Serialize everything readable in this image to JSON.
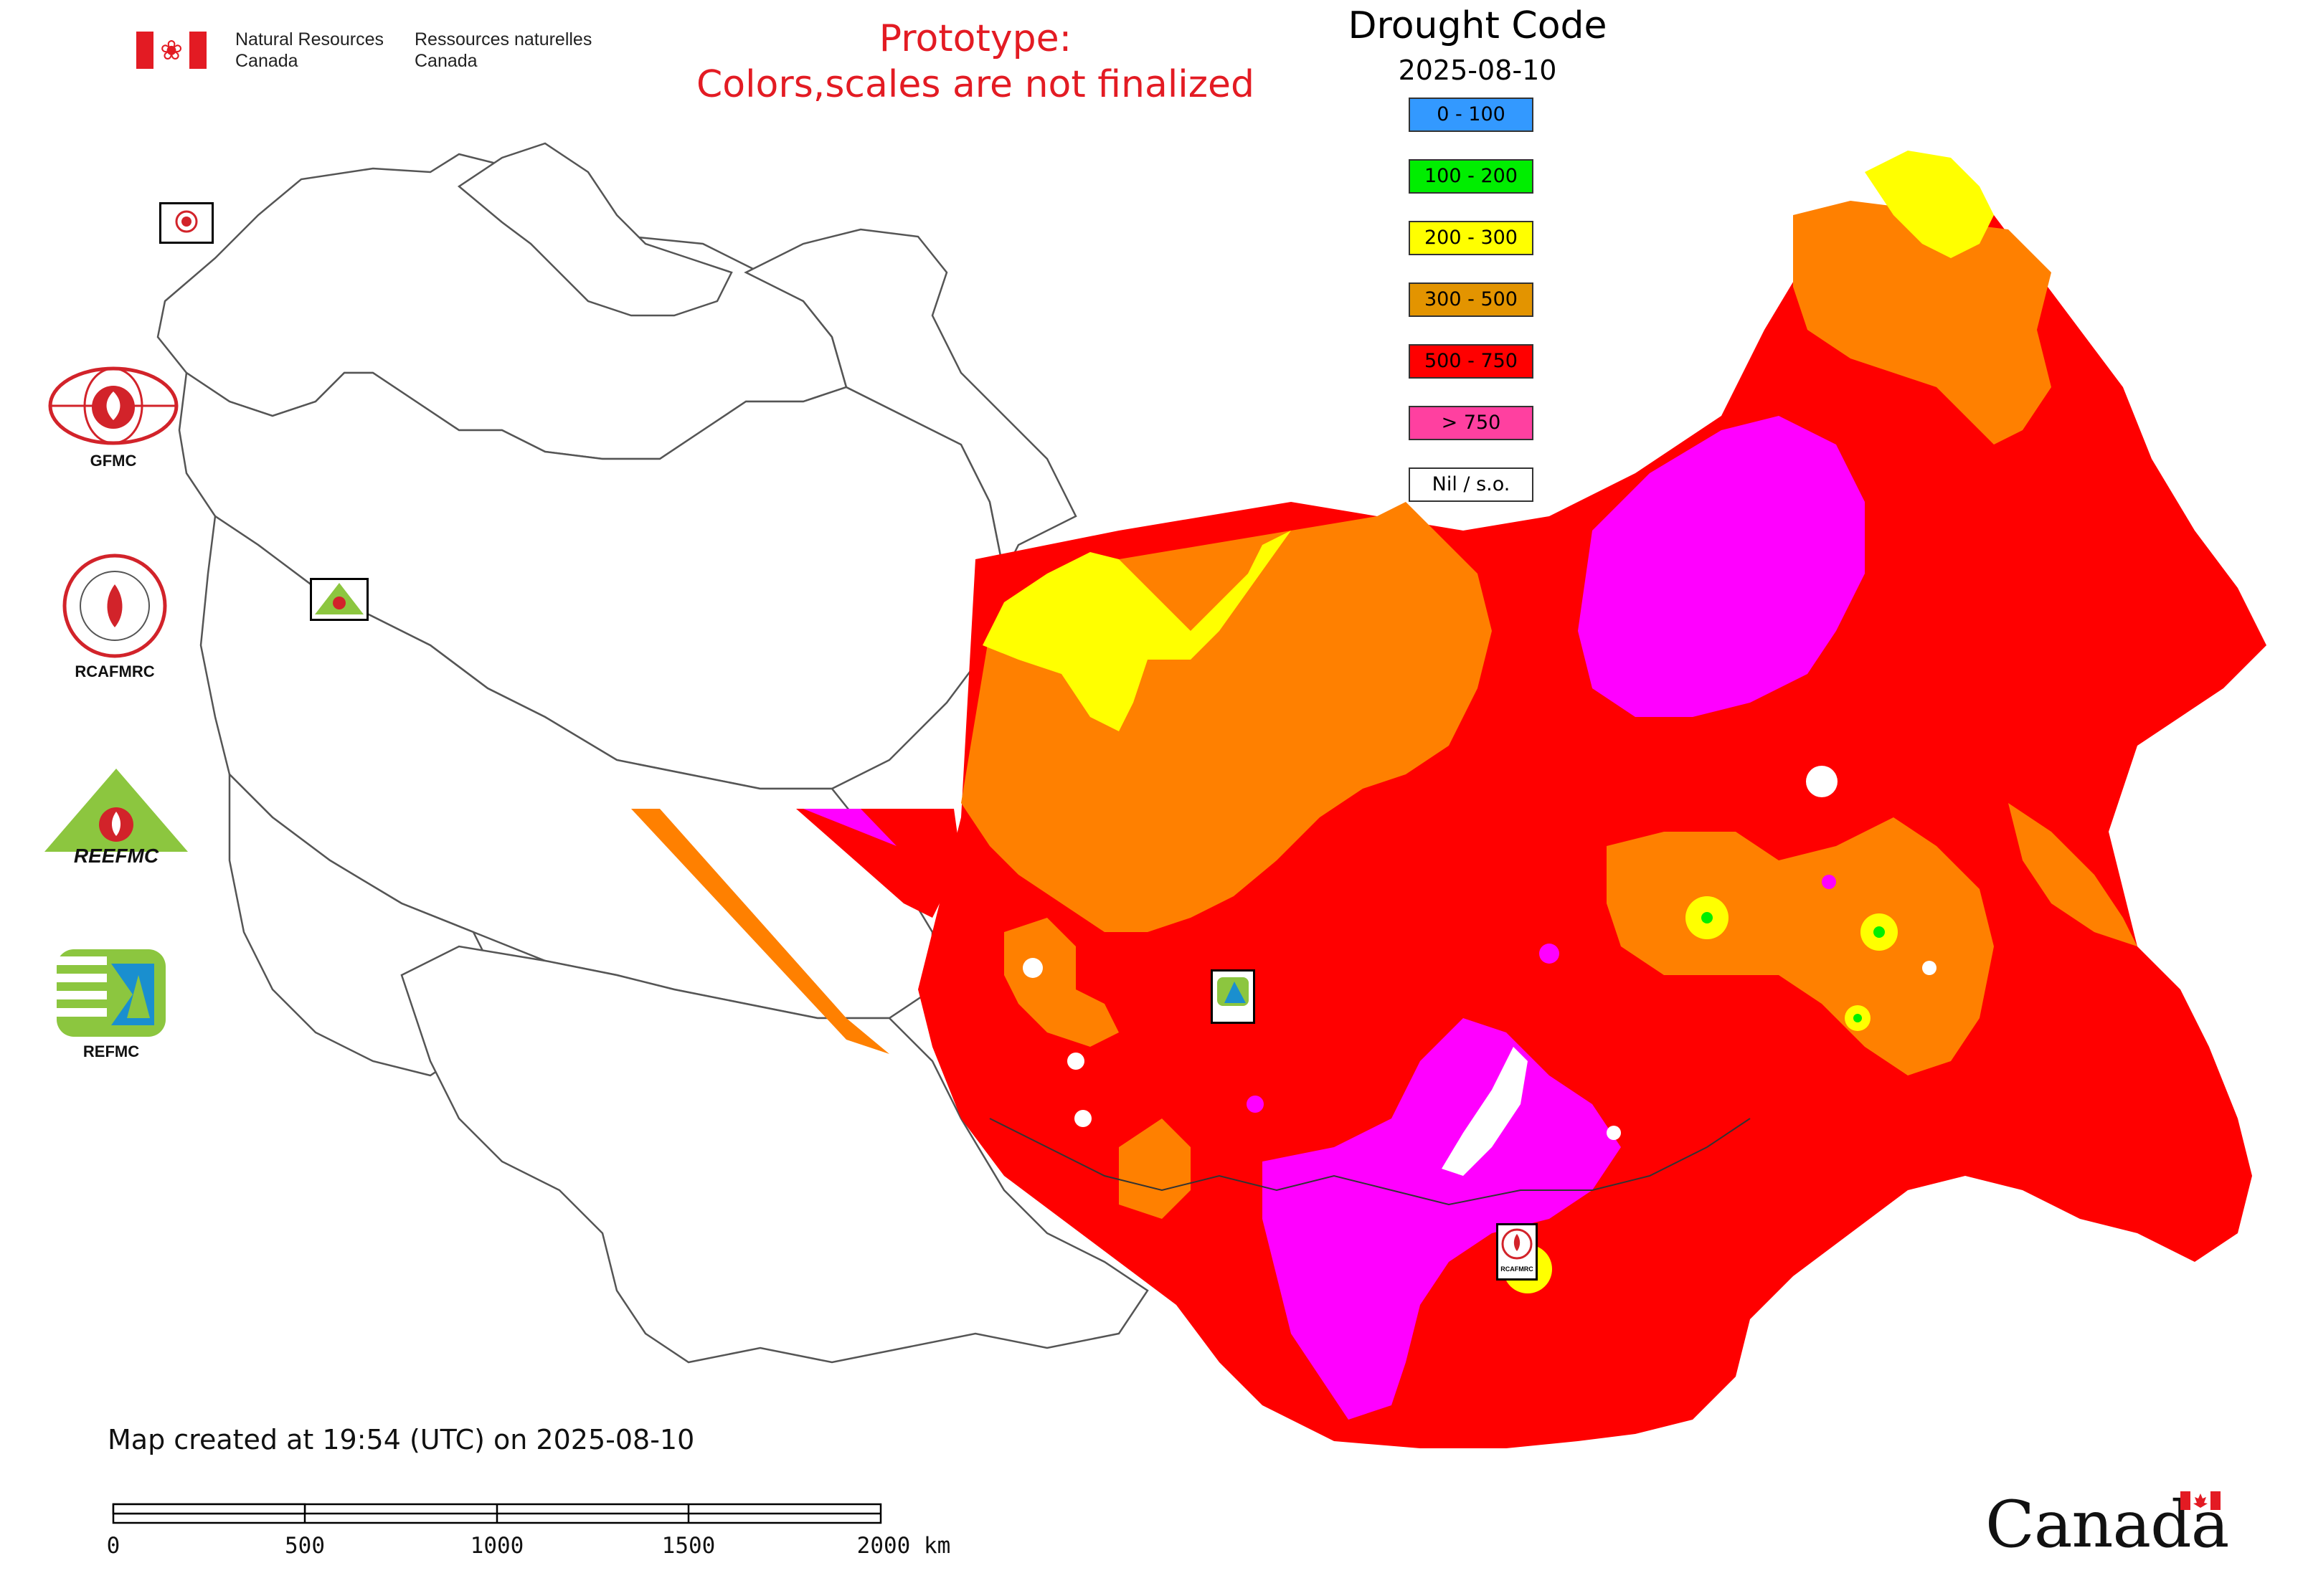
{
  "header": {
    "dept_en": "Natural Resources Canada",
    "dept_fr": "Ressources naturelles Canada"
  },
  "prototype_notice": {
    "line1": "Prototype:",
    "line2": "Colors,scales are not finalized"
  },
  "legend": {
    "title": "Drought Code",
    "date": "2025-08-10",
    "classes": [
      {
        "label": "0 - 100",
        "color": "#3399ff"
      },
      {
        "label": "100 - 200",
        "color": "#00ee00"
      },
      {
        "label": "200 - 300",
        "color": "#ffff00"
      },
      {
        "label": "300 - 500",
        "color": "#e39400"
      },
      {
        "label": "500 - 750",
        "color": "#ff0000"
      },
      {
        "label": "> 750",
        "color": "#ff40a0"
      },
      {
        "label": "Nil / s.o.",
        "color": "#ffffff"
      }
    ]
  },
  "map_colors": {
    "very_high": "#ff00ff",
    "high": "#ff0000",
    "moderate": "#ff8000",
    "low": "#ffff00",
    "very_low": "#00ee00",
    "boundary": "#555555"
  },
  "logos": {
    "gfmc": "GFMC",
    "rcafmrc": "RCAFMRC",
    "reefmc_text": "REEFMC",
    "refmc": "REFMC",
    "rcafmrc_badge": "RCAFMRC"
  },
  "icons": [
    "canada-flag-icon",
    "gfmc-logo-icon",
    "rcafmrc-logo-icon",
    "reefmc-logo-icon",
    "refmc-logo-icon"
  ],
  "timestamp": "Map created at 19:54 (UTC) on 2025-08-10",
  "scale_bar": {
    "labels": [
      "0",
      "500",
      "1000",
      "1500",
      "2000 km"
    ]
  },
  "wordmark": "Canada"
}
